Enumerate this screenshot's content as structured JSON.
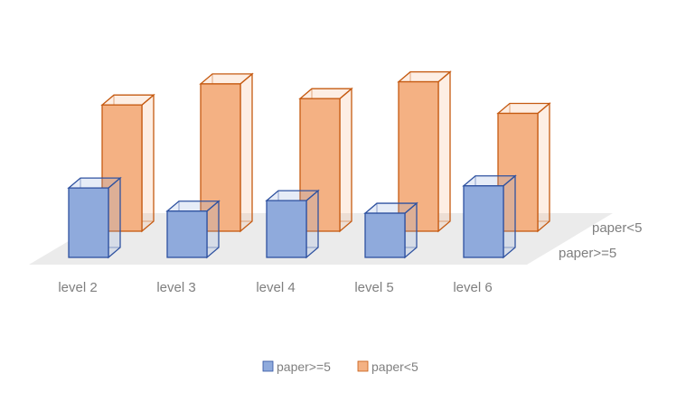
{
  "chart_data": {
    "type": "bar",
    "subtype": "3d-column",
    "categories": [
      "level 2",
      "level 3",
      "level 4",
      "level 5",
      "level 6"
    ],
    "series": [
      {
        "name": "paper>=5",
        "values": [
          3.3,
          2.2,
          2.7,
          2.1,
          3.4
        ]
      },
      {
        "name": "paper<5",
        "values": [
          6.0,
          7.0,
          6.3,
          7.1,
          5.6
        ]
      }
    ],
    "depth_labels": [
      "paper<5",
      "paper>=5"
    ],
    "ylim": [
      0,
      7.5
    ],
    "grid": false,
    "legend": {
      "position": "bottom",
      "entries": [
        "paper>=5",
        "paper<5"
      ]
    },
    "colors": {
      "paper>=5": {
        "fill": "#8faadc",
        "edge": "#2f52a0"
      },
      "paper<5": {
        "fill": "#f4b183",
        "edge": "#c55a11"
      },
      "floor": "#ebebeb",
      "text": "#7f7f7f"
    }
  }
}
